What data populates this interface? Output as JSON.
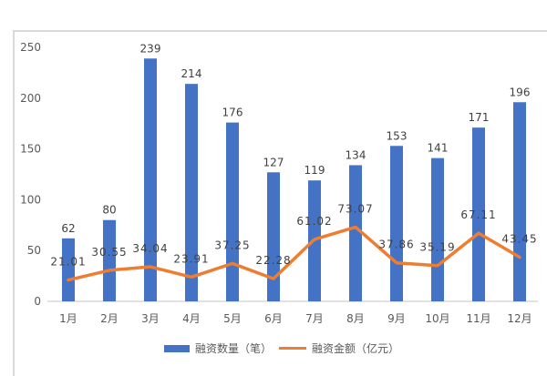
{
  "chart_data": {
    "type": "bar+line",
    "title": "",
    "categories": [
      "1月",
      "2月",
      "3月",
      "4月",
      "5月",
      "6月",
      "7月",
      "8月",
      "9月",
      "10月",
      "11月",
      "12月"
    ],
    "series": [
      {
        "name": "融资数量（笔）",
        "type": "bar",
        "color": "#4472C4",
        "values": [
          62,
          80,
          239,
          214,
          176,
          127,
          119,
          134,
          153,
          141,
          171,
          196
        ]
      },
      {
        "name": "融资金额（亿元）",
        "type": "line",
        "color": "#ED7D31",
        "values": [
          21.01,
          30.55,
          34.04,
          23.91,
          37.25,
          22.28,
          61.02,
          73.07,
          37.86,
          35.19,
          67.11,
          43.45
        ]
      }
    ],
    "xlabel": "",
    "ylabel": "",
    "ylim": [
      0,
      250
    ],
    "yticks": [
      0,
      50,
      100,
      150,
      200,
      250
    ],
    "grid": false,
    "legend_position": "bottom"
  },
  "legend": {
    "bar_label": "融资数量（笔）",
    "line_label": "融资金额（亿元）"
  }
}
